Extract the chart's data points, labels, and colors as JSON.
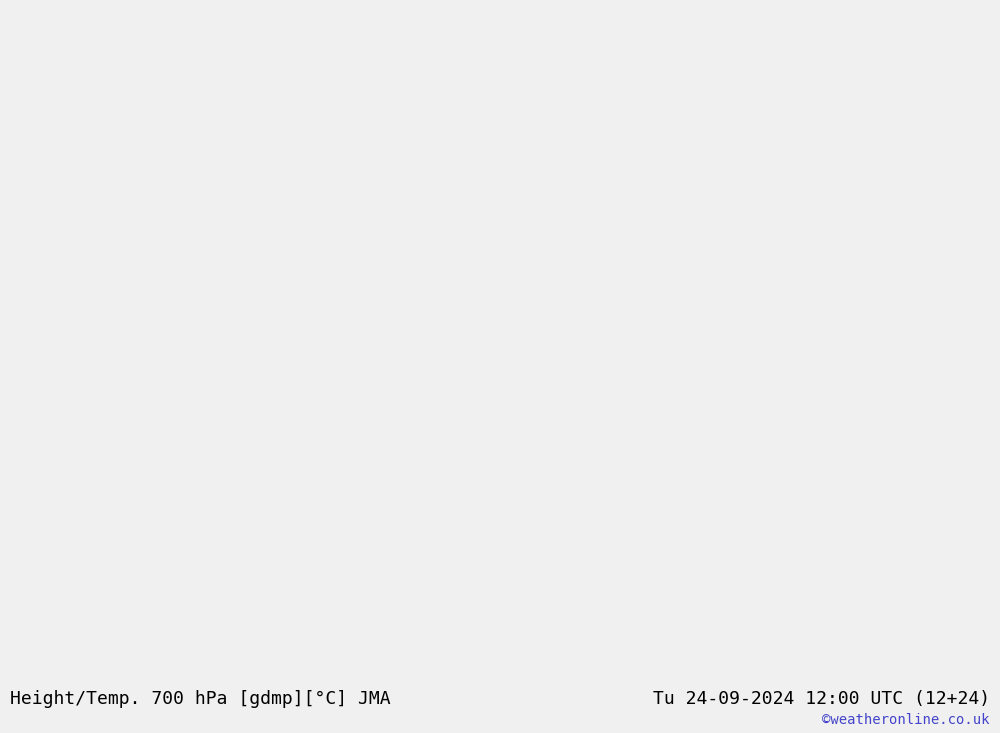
{
  "title_left": "Height/Temp. 700 hPa [gdmp][°C] JMA",
  "title_right": "Tu 24-09-2024 12:00 UTC (12+24)",
  "credit": "©weatheronline.co.uk",
  "background_color": "#e8e8e8",
  "land_color": "#c8e6c8",
  "ocean_color": "#e8e8e8",
  "contour_color_height": "#000000",
  "contour_color_temp_pos": "#cc0000",
  "contour_color_temp_neg_warm": "#cc0000",
  "contour_color_temp_orange": "#ff8c00",
  "contour_color_temp_magenta": "#cc00cc",
  "font_size_title": 13,
  "font_size_credit": 10,
  "fig_width": 10.0,
  "fig_height": 7.33,
  "dpi": 100
}
